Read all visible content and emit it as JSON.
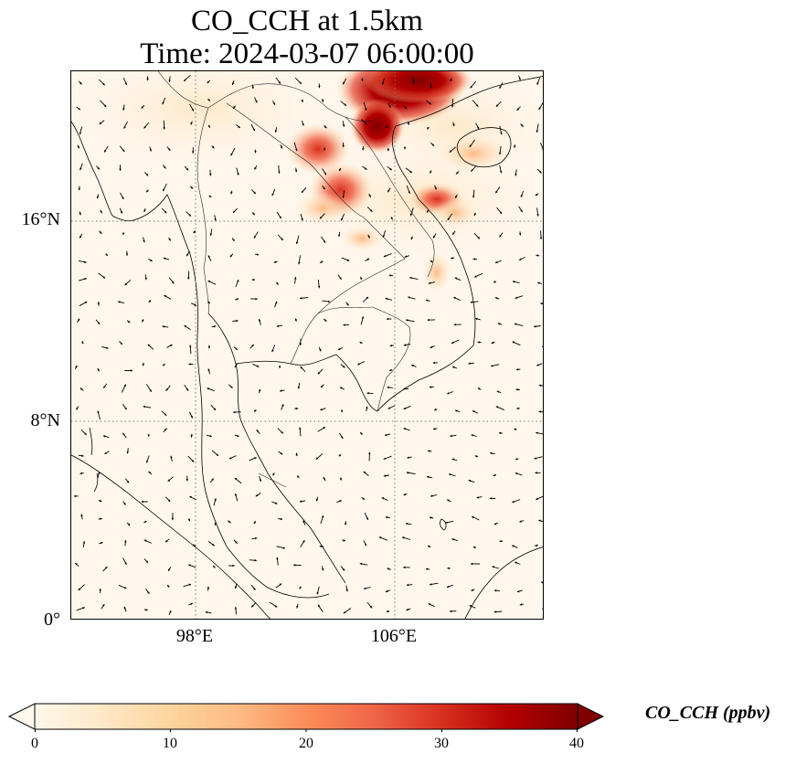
{
  "title": {
    "line1": "CO_CCH at 1.5km",
    "line2": "Time: 2024-03-07 06:00:00"
  },
  "map": {
    "lat_ticks": [
      "16°N",
      "8°N",
      "0°"
    ],
    "lon_ticks": [
      "98°E",
      "106°E"
    ],
    "lon_range": [
      93,
      112
    ],
    "lat_range": [
      0,
      22
    ],
    "grid_style": "dotted",
    "colormap": "OrRd",
    "colors": {
      "low": "#fff7ec",
      "mid": "#fc8d59",
      "high": "#7f0000",
      "coast": "#000000",
      "vectors": "#000000"
    }
  },
  "colorbar": {
    "label": "CO_CCH (ppbv)",
    "ticks": [
      "0",
      "10",
      "20",
      "30",
      "40"
    ],
    "range": [
      0,
      40
    ],
    "extend": "both",
    "orientation": "horizontal"
  }
}
